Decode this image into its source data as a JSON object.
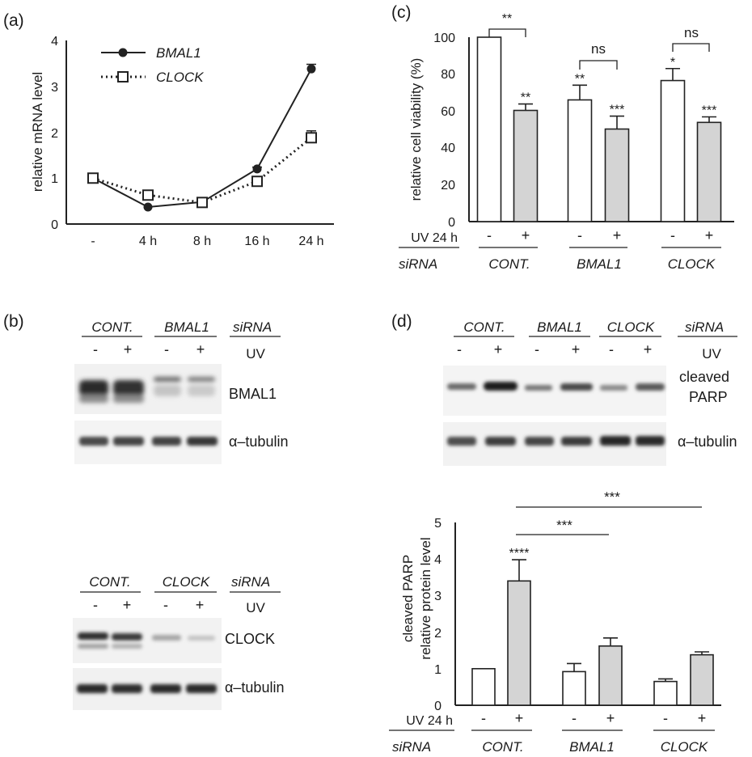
{
  "panels": {
    "a": {
      "label": "(a)",
      "chart_data": {
        "type": "line",
        "ylabel": "relative mRNA level",
        "categories": [
          "-",
          "4 h",
          "8 h",
          "16 h",
          "24 h"
        ],
        "ylim": [
          0,
          4
        ],
        "yticks": [
          "0",
          "1",
          "2",
          "3",
          "4"
        ],
        "series": [
          {
            "name": "BMAL1",
            "values": [
              1.0,
              0.37,
              0.48,
              1.2,
              3.38
            ],
            "errors": [
              0.02,
              0.02,
              0.02,
              0.04,
              0.1
            ],
            "style": "solid",
            "marker": "filled-circle"
          },
          {
            "name": "CLOCK",
            "values": [
              1.0,
              0.63,
              0.47,
              0.93,
              1.88
            ],
            "errors": [
              0.02,
              0.03,
              0.02,
              0.04,
              0.15
            ],
            "style": "dotted",
            "marker": "open-square"
          }
        ]
      }
    },
    "c": {
      "label": "(c)",
      "chart_data": {
        "type": "bar",
        "ylabel": "relative cell viability (%)",
        "ylim": [
          0,
          100
        ],
        "yticks": [
          "0",
          "20",
          "40",
          "60",
          "80",
          "100"
        ],
        "uv_label": "UV 24 h",
        "sirna_label": "siRNA",
        "categories": [
          "CONT.",
          "BMAL1",
          "CLOCK"
        ],
        "uv_signs": [
          "-",
          "+"
        ],
        "series": [
          {
            "name": "-",
            "values": [
              100,
              66,
              76.5
            ],
            "errors": [
              0,
              8,
              6.5
            ],
            "color": "#ffffff"
          },
          {
            "name": "+",
            "values": [
              60.3,
              50.2,
              53.8
            ],
            "errors": [
              3.5,
              7,
              3
            ],
            "color": "#d4d4d4"
          }
        ],
        "significance": {
          "bar_labels": [
            [
              "",
              "**"
            ],
            [
              "**",
              "***"
            ],
            [
              "*",
              "***"
            ]
          ],
          "brackets": [
            "**",
            "ns",
            "ns"
          ]
        }
      }
    },
    "b": {
      "label": "(b)",
      "top": {
        "groups": [
          "CONT.",
          "BMAL1"
        ],
        "sirna_label": "siRNA",
        "uv_label": "UV",
        "signs": [
          "-",
          "+",
          "-",
          "+"
        ],
        "bands": [
          "BMAL1",
          "α–tubulin"
        ]
      },
      "bottom": {
        "groups": [
          "CONT.",
          "CLOCK"
        ],
        "sirna_label": "siRNA",
        "uv_label": "UV",
        "signs": [
          "-",
          "+",
          "-",
          "+"
        ],
        "bands": [
          "CLOCK",
          "α–tubulin"
        ]
      }
    },
    "d": {
      "label": "(d)",
      "blot": {
        "groups": [
          "CONT.",
          "BMAL1",
          "CLOCK"
        ],
        "sirna_label": "siRNA",
        "uv_label": "UV",
        "signs": [
          "-",
          "+",
          "-",
          "+",
          "-",
          "+"
        ],
        "band_1_line1": "cleaved",
        "band_1_line2": "PARP",
        "band_2": "α–tubulin"
      },
      "chart_data": {
        "type": "bar",
        "ylabel_line1": "cleaved PARP",
        "ylabel_line2": "relative protein level",
        "ylim": [
          0,
          5
        ],
        "yticks": [
          "0",
          "1",
          "2",
          "3",
          "4",
          "5"
        ],
        "uv_label": "UV 24 h",
        "sirna_label": "siRNA",
        "categories": [
          "CONT.",
          "BMAL1",
          "CLOCK"
        ],
        "uv_signs": [
          "-",
          "+"
        ],
        "series": [
          {
            "name": "-",
            "values": [
              1.0,
              0.92,
              0.65
            ],
            "errors": [
              0,
              0.22,
              0.07
            ],
            "color": "#ffffff"
          },
          {
            "name": "+",
            "values": [
              3.4,
              1.62,
              1.38
            ],
            "errors": [
              0.58,
              0.22,
              0.08
            ],
            "color": "#d4d4d4"
          }
        ],
        "significance": {
          "bar_label": "****",
          "line_1": "***",
          "line_2": "***"
        }
      }
    }
  }
}
